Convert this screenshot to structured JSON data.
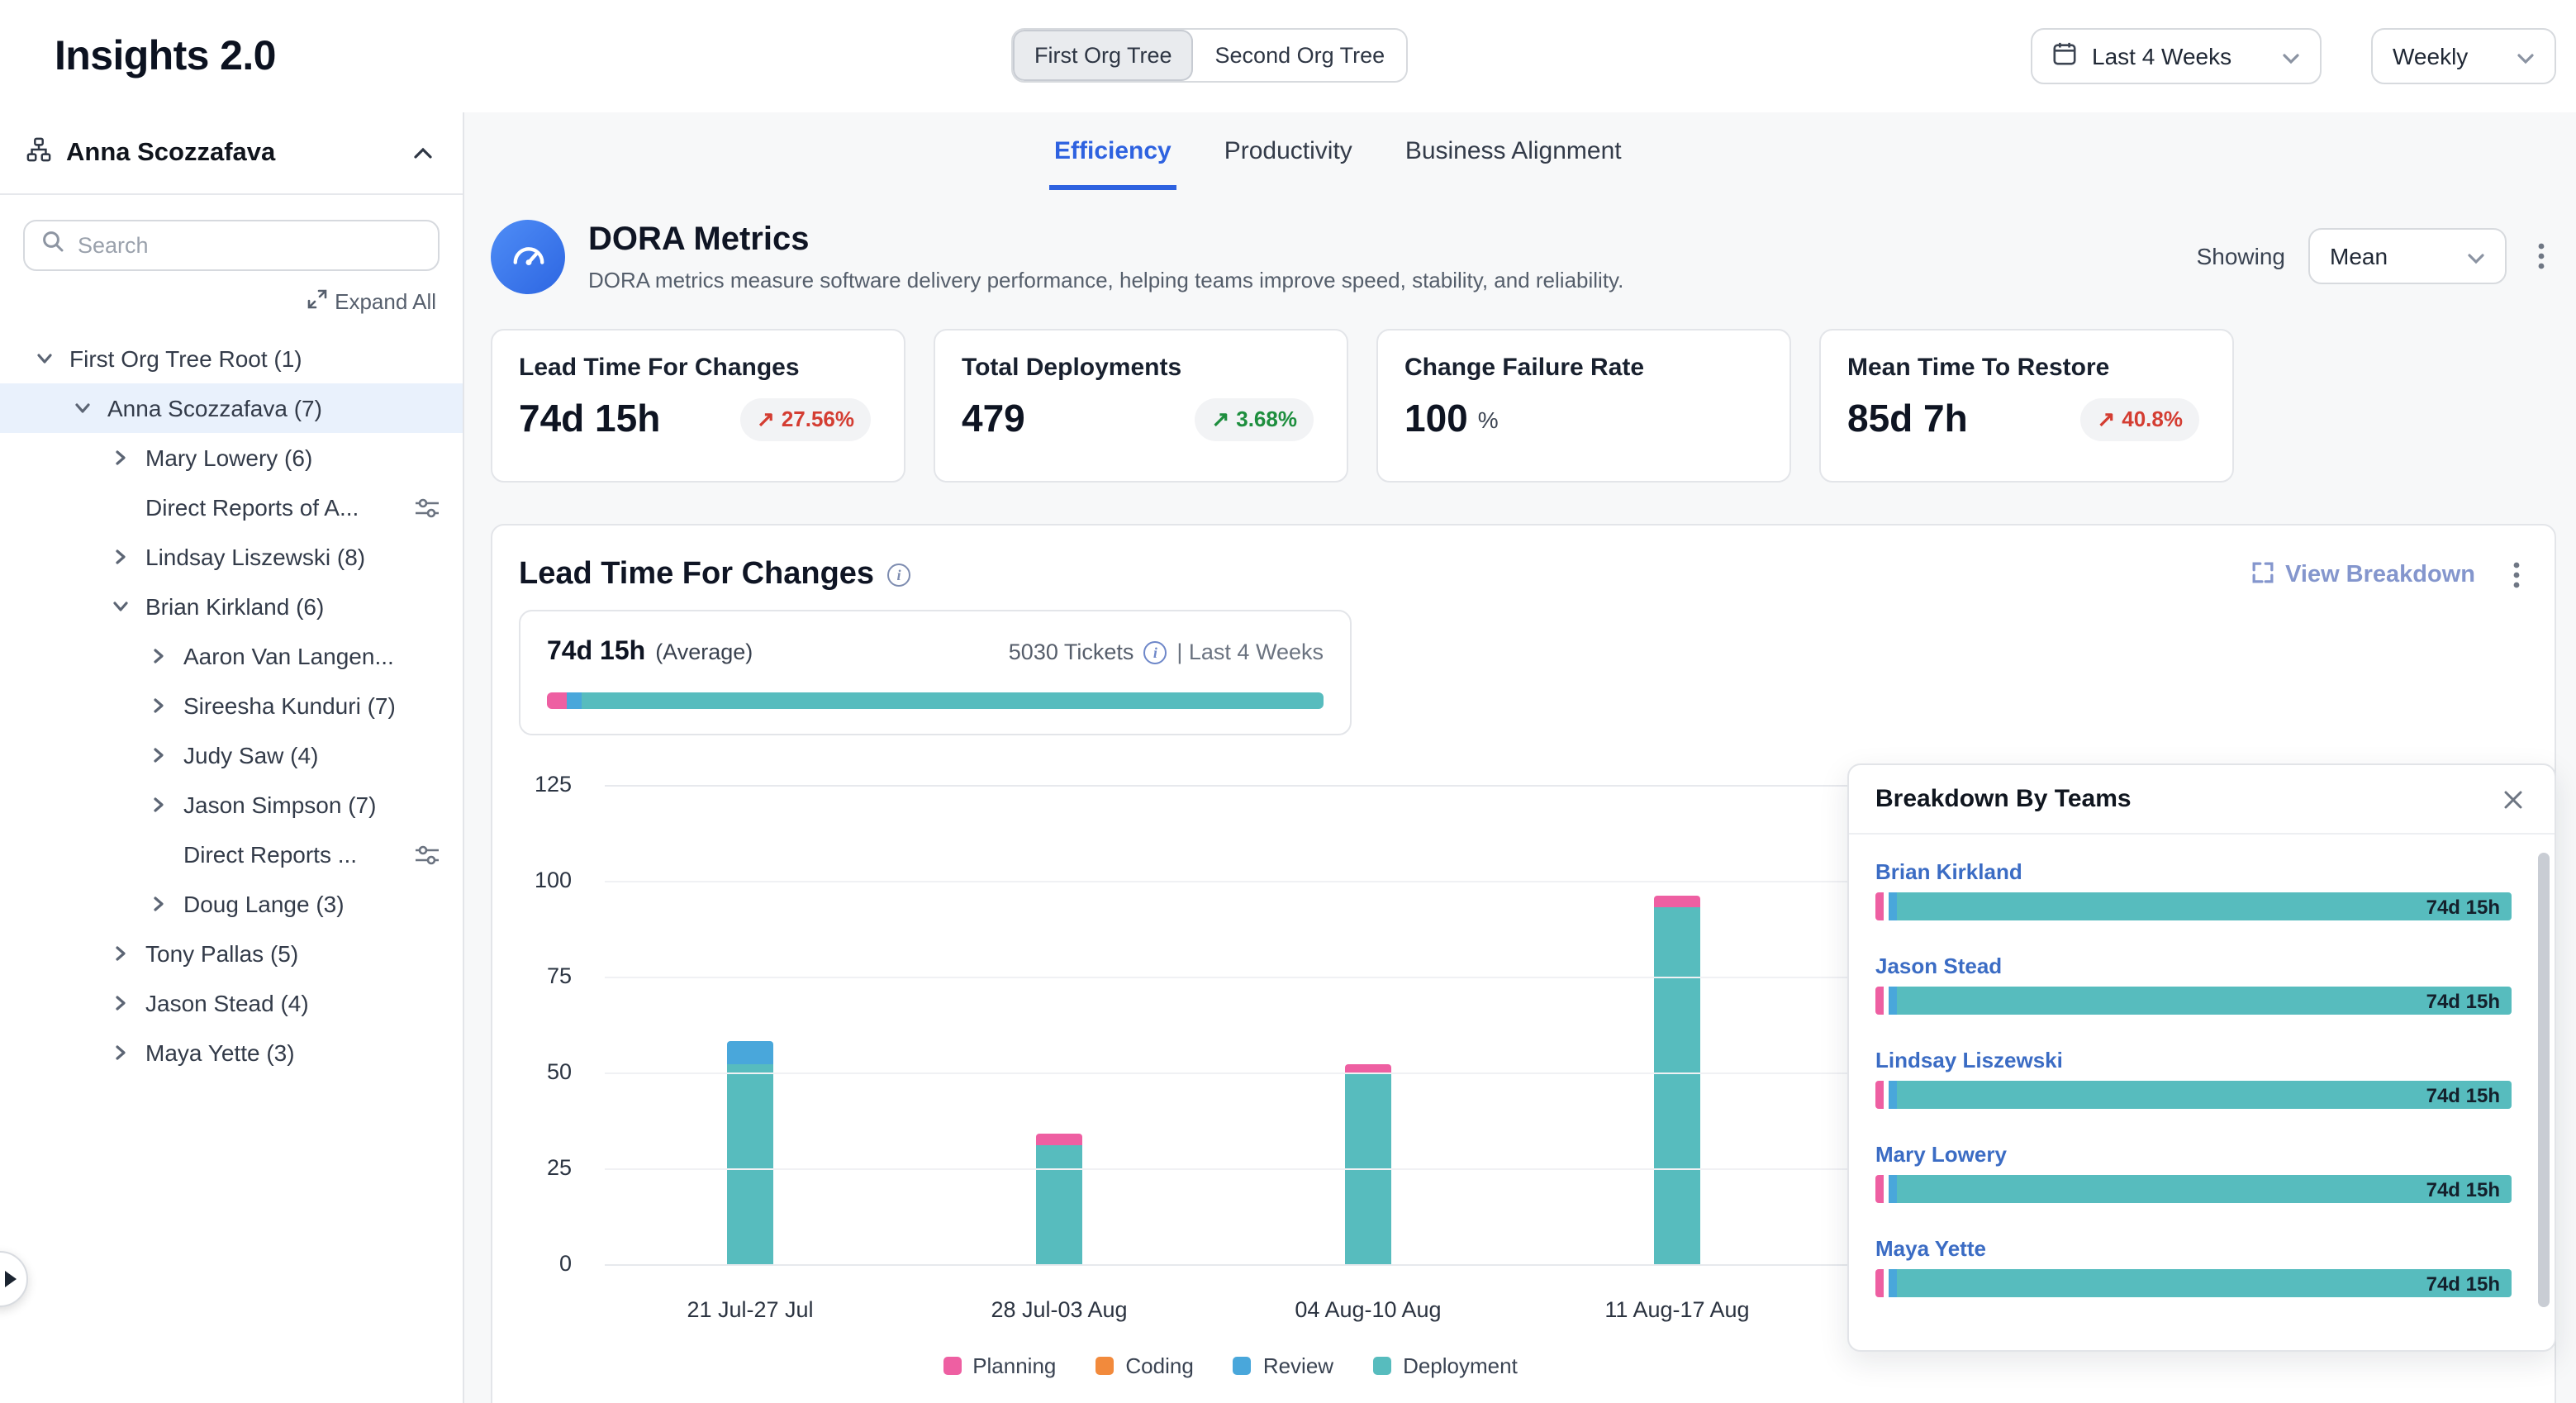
{
  "app": {
    "title": "Insights 2.0"
  },
  "header": {
    "org_toggle": [
      {
        "label": "First Org Tree",
        "active": true
      },
      {
        "label": "Second Org Tree",
        "active": false
      }
    ],
    "date_range": "Last 4 Weeks",
    "granularity": "Weekly"
  },
  "sidebar": {
    "root_user": "Anna Scozzafava",
    "search_placeholder": "Search",
    "expand_all_label": "Expand All",
    "tree": [
      {
        "label": "First Org Tree Root (1)",
        "level": 0,
        "chevron": "down"
      },
      {
        "label": "Anna Scozzafava (7)",
        "level": 1,
        "chevron": "down",
        "selected": true
      },
      {
        "label": "Mary Lowery (6)",
        "level": 2,
        "chevron": "right"
      },
      {
        "label": "Direct Reports of A...",
        "level": 2,
        "chevron": "none",
        "filter": true
      },
      {
        "label": "Lindsay Liszewski (8)",
        "level": 2,
        "chevron": "right"
      },
      {
        "label": "Brian Kirkland (6)",
        "level": 2,
        "chevron": "down"
      },
      {
        "label": "Aaron Van Langen...",
        "level": 3,
        "chevron": "right"
      },
      {
        "label": "Sireesha Kunduri (7)",
        "level": 3,
        "chevron": "right"
      },
      {
        "label": "Judy Saw (4)",
        "level": 3,
        "chevron": "right"
      },
      {
        "label": "Jason Simpson (7)",
        "level": 3,
        "chevron": "right"
      },
      {
        "label": "Direct Reports ...",
        "level": 3,
        "chevron": "none",
        "filter": true
      },
      {
        "label": "Doug Lange (3)",
        "level": 3,
        "chevron": "right"
      },
      {
        "label": "Tony Pallas (5)",
        "level": 2,
        "chevron": "right"
      },
      {
        "label": "Jason Stead (4)",
        "level": 2,
        "chevron": "right"
      },
      {
        "label": "Maya Yette (3)",
        "level": 2,
        "chevron": "right"
      }
    ]
  },
  "tabs": [
    {
      "label": "Efficiency",
      "active": true
    },
    {
      "label": "Productivity",
      "active": false
    },
    {
      "label": "Business Alignment",
      "active": false
    }
  ],
  "dora": {
    "title": "DORA Metrics",
    "subtitle": "DORA metrics measure software delivery performance, helping teams improve speed, stability, and reliability.",
    "showing_label": "Showing",
    "showing_value": "Mean",
    "cards": [
      {
        "title": "Lead Time For Changes",
        "value": "74d 15h",
        "delta": "27.56%",
        "arrow": "↗",
        "delta_color": "#d43d32"
      },
      {
        "title": "Total Deployments",
        "value": "479",
        "delta": "3.68%",
        "arrow": "↗",
        "delta_color": "#1e8e3e"
      },
      {
        "title": "Change Failure Rate",
        "value": "100",
        "suffix": "%"
      },
      {
        "title": "Mean Time To Restore",
        "value": "85d 7h",
        "delta": "40.8%",
        "arrow": "↗",
        "delta_color": "#d43d32"
      }
    ]
  },
  "lead_time": {
    "title": "Lead Time For Changes",
    "view_breakdown_label": "View Breakdown",
    "average_value": "74d 15h",
    "average_label": "(Average)",
    "tickets_label": "5030 Tickets",
    "period_label": "| Last 4 Weeks",
    "summary_segments": [
      {
        "phase": "Planning",
        "color": "#ee5fa2",
        "px": 12
      },
      {
        "phase": "Review",
        "color": "#49a7db",
        "px": 9
      },
      {
        "phase": "Deployment",
        "color": "#57bcbe",
        "flex": true
      }
    ]
  },
  "chart_data": {
    "type": "bar",
    "stacked": true,
    "title": "Lead Time For Changes",
    "categories": [
      "21 Jul-27 Jul",
      "28 Jul-03 Aug",
      "04 Aug-10 Aug",
      "11 Aug-17 Aug"
    ],
    "series": [
      {
        "name": "Planning",
        "color": "#ee5fa2",
        "values": [
          0,
          3,
          2,
          3
        ]
      },
      {
        "name": "Coding",
        "color": "#f28a3c",
        "values": [
          0,
          0,
          0,
          0
        ]
      },
      {
        "name": "Review",
        "color": "#49a7db",
        "values": [
          6,
          0,
          0,
          0
        ]
      },
      {
        "name": "Deployment",
        "color": "#57bcbe",
        "values": [
          52,
          31,
          50,
          93
        ]
      }
    ],
    "ylim": [
      0,
      125
    ],
    "yticks": [
      0,
      25,
      50,
      75,
      100,
      125
    ],
    "grid": "horizontal",
    "legend_position": "bottom"
  },
  "breakdown": {
    "title": "Breakdown By Teams",
    "bar_segments": [
      {
        "color": "#ee5fa2",
        "px": 5
      },
      {
        "color": "#ffffff",
        "px": 3
      },
      {
        "color": "#49a7db",
        "px": 5
      },
      {
        "color": "#57bcbe",
        "flex": true
      }
    ],
    "teams": [
      {
        "name": "Brian Kirkland",
        "value": "74d 15h"
      },
      {
        "name": "Jason Stead",
        "value": "74d 15h"
      },
      {
        "name": "Lindsay Liszewski",
        "value": "74d 15h"
      },
      {
        "name": "Mary Lowery",
        "value": "74d 15h"
      },
      {
        "name": "Maya Yette",
        "value": "74d 15h"
      }
    ]
  }
}
